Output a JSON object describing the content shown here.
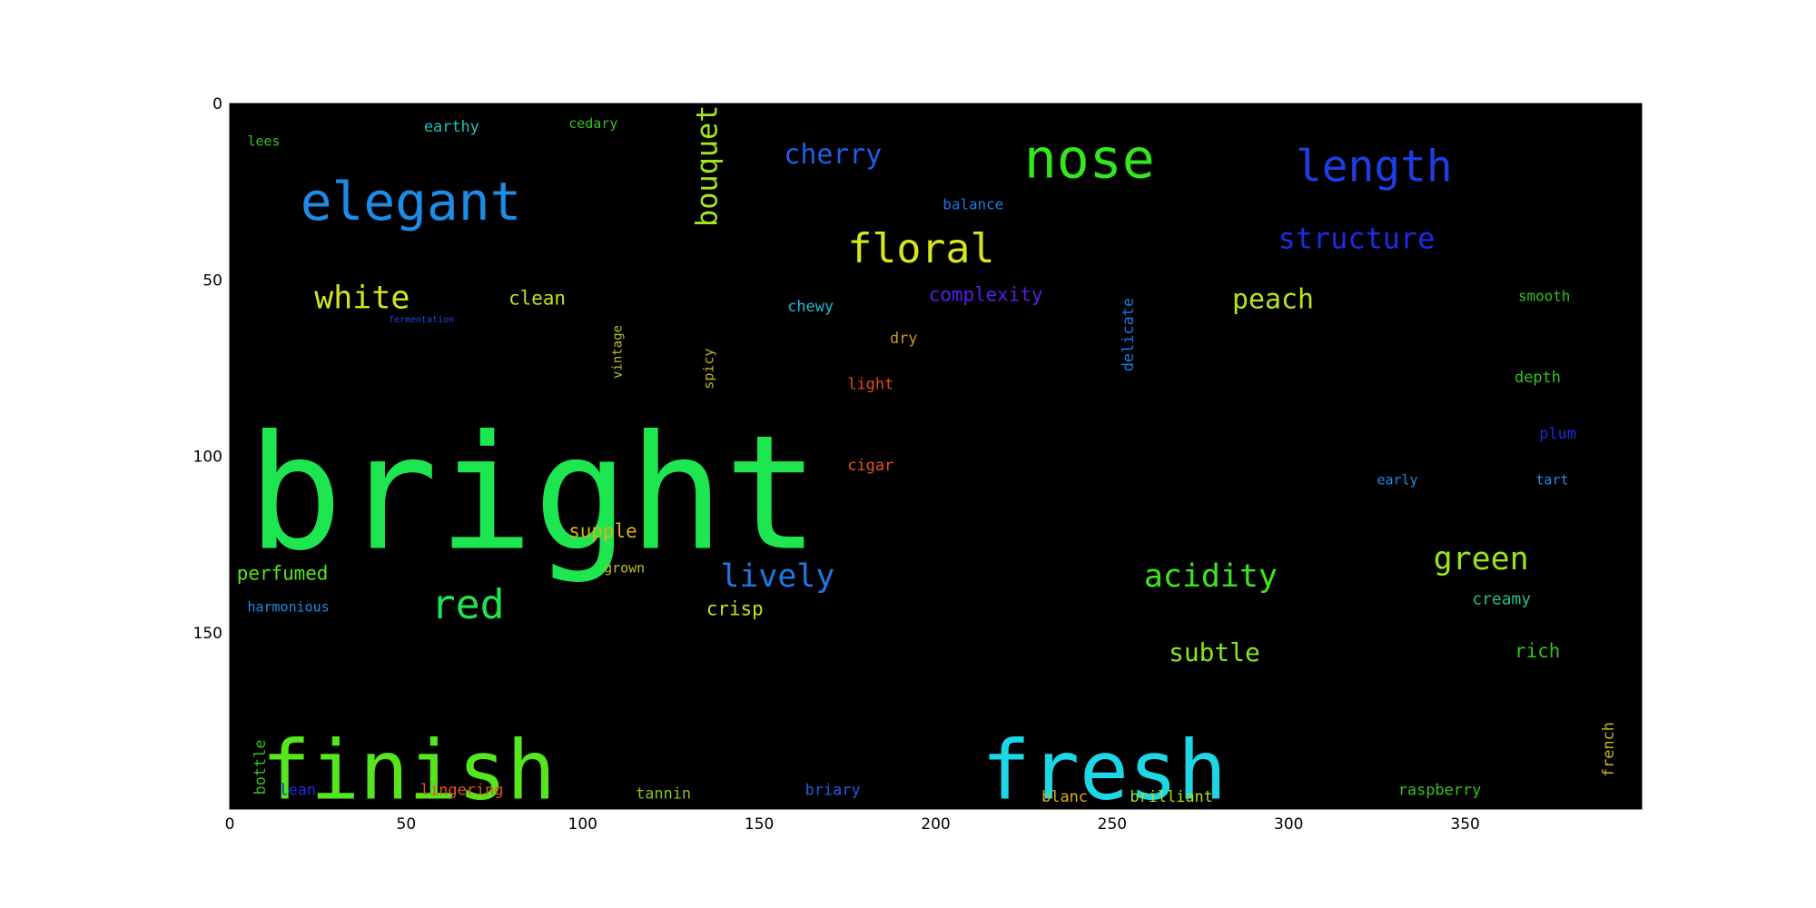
{
  "chart_data": {
    "type": "wordcloud",
    "title": "",
    "xlabel": "",
    "ylabel": "",
    "xlim": [
      0,
      400
    ],
    "ylim": [
      200,
      0
    ],
    "grid": false,
    "background": "#000000",
    "x_ticks": [
      {
        "value": 0,
        "label": "0"
      },
      {
        "value": 50,
        "label": "50"
      },
      {
        "value": 100,
        "label": "100"
      },
      {
        "value": 150,
        "label": "150"
      },
      {
        "value": 200,
        "label": "200"
      },
      {
        "value": 250,
        "label": "250"
      },
      {
        "value": 300,
        "label": "300"
      },
      {
        "value": 350,
        "label": "350"
      }
    ],
    "y_ticks": [
      {
        "value": 0,
        "label": "0"
      },
      {
        "value": 50,
        "label": "50"
      },
      {
        "value": 100,
        "label": "100"
      },
      {
        "value": 150,
        "label": "150"
      }
    ],
    "words": [
      {
        "text": "bright",
        "x": 5,
        "y": 126,
        "size": 175,
        "color": "#1de650",
        "rotate": 0
      },
      {
        "text": "finish",
        "x": 9,
        "y": 197,
        "size": 90,
        "color": "#55e61d",
        "rotate": 0
      },
      {
        "text": "fresh",
        "x": 213,
        "y": 197,
        "size": 90,
        "color": "#1dd6e6",
        "rotate": 0
      },
      {
        "text": "elegant",
        "x": 20,
        "y": 33,
        "size": 58,
        "color": "#1d8ce6",
        "rotate": 0
      },
      {
        "text": "nose",
        "x": 225,
        "y": 21,
        "size": 60,
        "color": "#33e61d",
        "rotate": 0
      },
      {
        "text": "length",
        "x": 302,
        "y": 22,
        "size": 48,
        "color": "#1d3ee6",
        "rotate": 0
      },
      {
        "text": "cherry",
        "x": 157,
        "y": 17,
        "size": 30,
        "color": "#1d5fe6",
        "rotate": 0
      },
      {
        "text": "floral",
        "x": 175,
        "y": 45,
        "size": 45,
        "color": "#d6e61d",
        "rotate": 0
      },
      {
        "text": "structure",
        "x": 297,
        "y": 41,
        "size": 32,
        "color": "#1d2ae6",
        "rotate": 0
      },
      {
        "text": "white",
        "x": 24,
        "y": 58,
        "size": 35,
        "color": "#d2e61d",
        "rotate": 0
      },
      {
        "text": "clean",
        "x": 79,
        "y": 57,
        "size": 21,
        "color": "#bde61d",
        "rotate": 0
      },
      {
        "text": "peach",
        "x": 284,
        "y": 58,
        "size": 30,
        "color": "#b4e61d",
        "rotate": 0
      },
      {
        "text": "bouquet",
        "x": 138,
        "y": 35,
        "size": 32,
        "color": "#a4e61d",
        "rotate": 90
      },
      {
        "text": "complexity",
        "x": 198,
        "y": 56,
        "size": 21,
        "color": "#5a1de6",
        "rotate": 0
      },
      {
        "text": "balance",
        "x": 202,
        "y": 30,
        "size": 16,
        "color": "#1d78e6",
        "rotate": 0
      },
      {
        "text": "earthy",
        "x": 55,
        "y": 8,
        "size": 17,
        "color": "#1dc2b8",
        "rotate": 0
      },
      {
        "text": "cedary",
        "x": 96,
        "y": 7,
        "size": 15,
        "color": "#33c21d",
        "rotate": 0
      },
      {
        "text": "lees",
        "x": 5,
        "y": 12,
        "size": 15,
        "color": "#33c21d",
        "rotate": 0
      },
      {
        "text": "chewy",
        "x": 158,
        "y": 59,
        "size": 17,
        "color": "#1db8d6",
        "rotate": 0
      },
      {
        "text": "smooth",
        "x": 365,
        "y": 56,
        "size": 16,
        "color": "#33c21d",
        "rotate": 0
      },
      {
        "text": "fermentation",
        "x": 45,
        "y": 62,
        "size": 10,
        "color": "#1d4ae6",
        "rotate": 0
      },
      {
        "text": "dry",
        "x": 187,
        "y": 68,
        "size": 17,
        "color": "#c29a1d",
        "rotate": 0
      },
      {
        "text": "light",
        "x": 175,
        "y": 81,
        "size": 17,
        "color": "#e64a1d",
        "rotate": 0
      },
      {
        "text": "depth",
        "x": 364,
        "y": 79,
        "size": 17,
        "color": "#33c21d",
        "rotate": 0
      },
      {
        "text": "vintage",
        "x": 111,
        "y": 78,
        "size": 14,
        "color": "#b8c21d",
        "rotate": 90
      },
      {
        "text": "spicy",
        "x": 137,
        "y": 81,
        "size": 15,
        "color": "#c2b81d",
        "rotate": 90
      },
      {
        "text": "delicate",
        "x": 256,
        "y": 76,
        "size": 17,
        "color": "#1d78e6",
        "rotate": 90
      },
      {
        "text": "plum",
        "x": 371,
        "y": 95,
        "size": 17,
        "color": "#1d2ae6",
        "rotate": 0
      },
      {
        "text": "cigar",
        "x": 175,
        "y": 104,
        "size": 17,
        "color": "#e6531d",
        "rotate": 0
      },
      {
        "text": "early",
        "x": 325,
        "y": 108,
        "size": 15,
        "color": "#1d8ce6",
        "rotate": 0
      },
      {
        "text": "tart",
        "x": 370,
        "y": 108,
        "size": 15,
        "color": "#1d8ce6",
        "rotate": 0
      },
      {
        "text": "supple",
        "x": 96,
        "y": 123,
        "size": 21,
        "color": "#dbb01d",
        "rotate": 0
      },
      {
        "text": "red",
        "x": 57,
        "y": 146,
        "size": 45,
        "color": "#1de650",
        "rotate": 0
      },
      {
        "text": "perfumed",
        "x": 2,
        "y": 135,
        "size": 21,
        "color": "#55e61d",
        "rotate": 0
      },
      {
        "text": "grown",
        "x": 106,
        "y": 133,
        "size": 15,
        "color": "#b8c21d",
        "rotate": 0
      },
      {
        "text": "lively",
        "x": 139,
        "y": 137,
        "size": 35,
        "color": "#1d78e6",
        "rotate": 0
      },
      {
        "text": "acidity",
        "x": 259,
        "y": 137,
        "size": 35,
        "color": "#3ee61d",
        "rotate": 0
      },
      {
        "text": "green",
        "x": 341,
        "y": 132,
        "size": 35,
        "color": "#9ae61d",
        "rotate": 0
      },
      {
        "text": "creamy",
        "x": 352,
        "y": 142,
        "size": 18,
        "color": "#1dc28a",
        "rotate": 0
      },
      {
        "text": "harmonious",
        "x": 5,
        "y": 144,
        "size": 15,
        "color": "#1d8ce6",
        "rotate": 0
      },
      {
        "text": "crisp",
        "x": 135,
        "y": 145,
        "size": 21,
        "color": "#bde61d",
        "rotate": 0
      },
      {
        "text": "subtle",
        "x": 266,
        "y": 158,
        "size": 28,
        "color": "#87e61d",
        "rotate": 0
      },
      {
        "text": "rich",
        "x": 364,
        "y": 157,
        "size": 21,
        "color": "#33c21d",
        "rotate": 0
      },
      {
        "text": "bottle",
        "x": 10,
        "y": 196,
        "size": 17,
        "color": "#33c21d",
        "rotate": 90
      },
      {
        "text": "french",
        "x": 392,
        "y": 191,
        "size": 17,
        "color": "#c2b81d",
        "rotate": 90
      },
      {
        "text": "lean",
        "x": 14,
        "y": 196,
        "size": 17,
        "color": "#1d2ae6",
        "rotate": 0
      },
      {
        "text": "lingering",
        "x": 54,
        "y": 196,
        "size": 17,
        "color": "#e6531d",
        "rotate": 0
      },
      {
        "text": "tannin",
        "x": 115,
        "y": 197,
        "size": 17,
        "color": "#87c21d",
        "rotate": 0
      },
      {
        "text": "briary",
        "x": 163,
        "y": 196,
        "size": 17,
        "color": "#1d5fe6",
        "rotate": 0
      },
      {
        "text": "blanc",
        "x": 230,
        "y": 198,
        "size": 17,
        "color": "#dbb01d",
        "rotate": 0
      },
      {
        "text": "brilliant",
        "x": 255,
        "y": 198,
        "size": 17,
        "color": "#a4e61d",
        "rotate": 0
      },
      {
        "text": "raspberry",
        "x": 331,
        "y": 196,
        "size": 17,
        "color": "#33c21d",
        "rotate": 0
      }
    ]
  }
}
